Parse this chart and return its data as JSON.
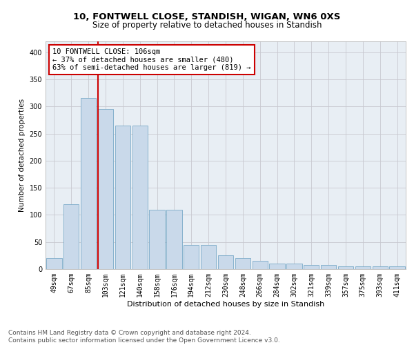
{
  "title1": "10, FONTWELL CLOSE, STANDISH, WIGAN, WN6 0XS",
  "title2": "Size of property relative to detached houses in Standish",
  "xlabel": "Distribution of detached houses by size in Standish",
  "ylabel": "Number of detached properties",
  "categories": [
    "49sqm",
    "67sqm",
    "85sqm",
    "103sqm",
    "121sqm",
    "140sqm",
    "158sqm",
    "176sqm",
    "194sqm",
    "212sqm",
    "230sqm",
    "248sqm",
    "266sqm",
    "284sqm",
    "302sqm",
    "321sqm",
    "339sqm",
    "357sqm",
    "375sqm",
    "393sqm",
    "411sqm"
  ],
  "values": [
    20,
    120,
    315,
    295,
    265,
    265,
    110,
    110,
    45,
    45,
    25,
    20,
    15,
    10,
    10,
    8,
    8,
    5,
    5,
    5,
    5
  ],
  "bar_color": "#c9d9ea",
  "bar_edge_color": "#7aaac8",
  "vline_x_index": 2.55,
  "vline_color": "#cc0000",
  "annotation_text": "10 FONTWELL CLOSE: 106sqm\n← 37% of detached houses are smaller (480)\n63% of semi-detached houses are larger (819) →",
  "annotation_box_color": "white",
  "annotation_box_edge_color": "#cc0000",
  "ylim": [
    0,
    420
  ],
  "yticks": [
    0,
    50,
    100,
    150,
    200,
    250,
    300,
    350,
    400
  ],
  "grid_color": "#c8c8d0",
  "bg_color": "#e8eef4",
  "footer_text": "Contains HM Land Registry data © Crown copyright and database right 2024.\nContains public sector information licensed under the Open Government Licence v3.0.",
  "title1_fontsize": 9.5,
  "title2_fontsize": 8.5,
  "xlabel_fontsize": 8,
  "ylabel_fontsize": 7.5,
  "tick_fontsize": 7,
  "annotation_fontsize": 7.5,
  "footer_fontsize": 6.5
}
